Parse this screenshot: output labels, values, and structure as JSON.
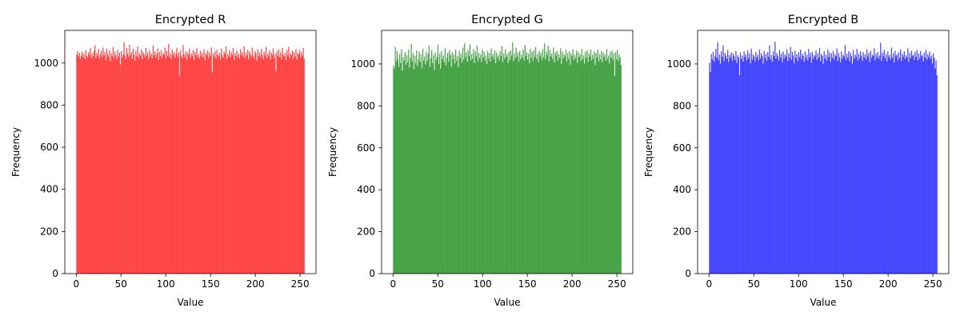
{
  "chart_data": [
    {
      "type": "bar",
      "title": "Encrypted R",
      "xlabel": "Value",
      "ylabel": "Frequency",
      "xlim": [
        -12.75,
        267.75
      ],
      "ylim": [
        0,
        1155
      ],
      "xticks": [
        0,
        50,
        100,
        150,
        200,
        250
      ],
      "yticks": [
        0,
        200,
        400,
        600,
        800,
        1000
      ],
      "bins": 256,
      "bin_range": [
        0,
        255
      ],
      "color": "#ff0000",
      "alpha": 0.7,
      "grid": false,
      "values": [
        1040,
        1057,
        1032,
        1048,
        1021,
        1036,
        1054,
        1029,
        1045,
        1018,
        1061,
        1034,
        1026,
        1052,
        1039,
        1071,
        1023,
        1046,
        1031,
        1057,
        1084,
        1022,
        1049,
        1035,
        1067,
        1019,
        1041,
        1058,
        1027,
        1073,
        1036,
        1052,
        1014,
        1069,
        1043,
        1028,
        1061,
        1009,
        1047,
        1033,
        1076,
        1025,
        1055,
        1038,
        1019,
        1063,
        1031,
        1049,
        993,
        1057,
        1026,
        1042,
        1098,
        1034,
        1018,
        1071,
        1045,
        1029,
        1086,
        1037,
        1052,
        1021,
        1068,
        1040,
        1013,
        1059,
        1032,
        1078,
        1024,
        1047,
        1036,
        1064,
        1019,
        1053,
        1041,
        1028,
        1072,
        1035,
        1049,
        1017,
        1061,
        1030,
        1045,
        1022,
        1083,
        1038,
        1056,
        1027,
        1044,
        1070,
        1015,
        1052,
        1033,
        1061,
        1025,
        1047,
        1039,
        1074,
        1021,
        1058,
        1034,
        1091,
        1028,
        1046,
        1019,
        1065,
        1038,
        1053,
        1026,
        1044,
        1072,
        1031,
        1049,
        941,
        1060,
        1035,
        1023,
        1086,
        1041,
        1029,
        1057,
        1018,
        1050,
        1039,
        1067,
        1024,
        1045,
        1032,
        1061,
        1014,
        1053,
        1037,
        1071,
        1026,
        1043,
        1020,
        1058,
        1034,
        1049,
        1027,
        1066,
        1012,
        1047,
        1038,
        1060,
        1023,
        1051,
        1035,
        1074,
        956,
        1046,
        1029,
        1057,
        1021,
        1063,
        1040,
        1032,
        1048,
        1017,
        1069,
        1036,
        1025,
        1054,
        1043,
        1079,
        1019,
        1045,
        1031,
        1062,
        1028,
        1050,
        1038,
        1071,
        1015,
        1047,
        1033,
        1059,
        1026,
        1044,
        1020,
        1066,
        1039,
        1052,
        1030,
        1081,
        1024,
        1048,
        1036,
        1063,
        1018,
        1055,
        1042,
        1029,
        1073,
        1035,
        1021,
        1058,
        1046,
        1011,
        1064,
        1033,
        1050,
        1027,
        1068,
        1040,
        1019,
        1054,
        1037,
        1076,
        1025,
        1047,
        1032,
        1061,
        1016,
        1049,
        1038,
        1070,
        1023,
        1044,
        962,
        1057,
        1034,
        1065,
        1028,
        1051,
        1019,
        1072,
        1040,
        1031,
        1048,
        1015,
        1062,
        1036,
        1077,
        1024,
        1045,
        1038,
        1059,
        1021,
        1053,
        1030,
        1066,
        1017,
        1047,
        1042,
        1060,
        1026,
        1051,
        1035,
        1071,
        1020
      ]
    },
    {
      "type": "bar",
      "title": "Encrypted G",
      "xlabel": "Value",
      "ylabel": "Frequency",
      "xlim": [
        -12.75,
        267.75
      ],
      "ylim": [
        0,
        1160
      ],
      "xticks": [
        0,
        50,
        100,
        150,
        200,
        250
      ],
      "yticks": [
        0,
        200,
        400,
        600,
        800,
        1000
      ],
      "bins": 256,
      "bin_range": [
        0,
        255
      ],
      "color": "#008000",
      "alpha": 0.7,
      "grid": false,
      "values": [
        992,
        978,
        1081,
        1013,
        1062,
        1024,
        987,
        1047,
        1005,
        1071,
        968,
        1033,
        1016,
        1056,
        996,
        1042,
        1007,
        1068,
        983,
        1029,
        1096,
        1012,
        1051,
        975,
        1038,
        1003,
        1064,
        990,
        1021,
        1058,
        1009,
        1045,
        981,
        1073,
        1017,
        1036,
        998,
        1060,
        1014,
        1048,
        1089,
        986,
        1027,
        1066,
        1004,
        1043,
        971,
        1055,
        1019,
        1034,
        1092,
        1001,
        1049,
        979,
        1061,
        1023,
        1040,
        1008,
        1075,
        993,
        1030,
        1053,
        1011,
        1067,
        1042,
        988,
        1057,
        1024,
        1046,
        1002,
        1069,
        1015,
        1037,
        984,
        1062,
        1028,
        1050,
        1006,
        1078,
        1020,
        1099,
        1033,
        1056,
        1010,
        1065,
        1039,
        1094,
        1018,
        1047,
        1025,
        1071,
        1004,
        1059,
        1036,
        1088,
        1012,
        1053,
        1027,
        1045,
        1009,
        1068,
        1031,
        1057,
        1017,
        1040,
        999,
        1063,
        1026,
        1051,
        1011,
        1074,
        1035,
        1048,
        1022,
        1066,
        1003,
        1055,
        1029,
        1043,
        1015,
        1061,
        1037,
        1086,
        1008,
        1052,
        1024,
        1070,
        1033,
        1046,
        1005,
        1058,
        1019,
        1064,
        1040,
        1102,
        1013,
        1049,
        1027,
        1077,
        1035,
        1054,
        1010,
        1062,
        1023,
        1045,
        1031,
        1069,
        1016,
        1091,
        1038,
        1056,
        1020,
        1048,
        1003,
        1072,
        1029,
        1059,
        1014,
        1066,
        1034,
        1080,
        1025,
        1047,
        1009,
        1063,
        1039,
        1053,
        1018,
        1071,
        1032,
        1098,
        1021,
        1058,
        1043,
        1087,
        1012,
        1067,
        1036,
        1050,
        1024,
        1079,
        1007,
        1055,
        1040,
        1062,
        1016,
        1047,
        1030,
        1074,
        1001,
        1059,
        1026,
        1045,
        1035,
        1068,
        1011,
        1052,
        1022,
        1061,
        997,
        1049,
        1037,
        1070,
        1018,
        1043,
        1027,
        1064,
        1005,
        1056,
        1033,
        1047,
        1014,
        1072,
        1023,
        1041,
        1002,
        1058,
        1030,
        1066,
        1009,
        1050,
        1035,
        1069,
        1017,
        1044,
        1026,
        1060,
        996,
        1053,
        1031,
        1068,
        1012,
        1047,
        1021,
        1062,
        1008,
        1055,
        1034,
        1046,
        1015,
        1071,
        1025,
        1040,
        1003,
        1058,
        1029,
        1064,
        1018,
        1051,
        944,
        1056,
        1022,
        1067,
        1013,
        1043,
        1031,
        996
      ]
    },
    {
      "type": "bar",
      "title": "Encrypted B",
      "xlabel": "Value",
      "ylabel": "Frequency",
      "xlim": [
        -12.75,
        267.75
      ],
      "ylim": [
        0,
        1160
      ],
      "xticks": [
        0,
        50,
        100,
        150,
        200,
        250
      ],
      "yticks": [
        0,
        200,
        400,
        600,
        800,
        1000
      ],
      "bins": 256,
      "bin_range": [
        0,
        255
      ],
      "color": "#0000ff",
      "alpha": 0.7,
      "grid": false,
      "values": [
        1005,
        962,
        1047,
        1021,
        1058,
        1012,
        1036,
        1071,
        1029,
        1103,
        1018,
        1046,
        1002,
        1061,
        1034,
        1088,
        1013,
        1052,
        1040,
        1025,
        1067,
        1009,
        1043,
        1030,
        1056,
        1015,
        1049,
        1037,
        1019,
        1062,
        1006,
        1041,
        1031,
        947,
        1054,
        1024,
        1039,
        1011,
        1059,
        1033,
        1046,
        1017,
        1064,
        1028,
        1050,
        1003,
        1073,
        1020,
        1045,
        1036,
        1012,
        1058,
        1031,
        1044,
        1018,
        1069,
        1026,
        1051,
        1038,
        1002,
        1063,
        1029,
        1047,
        1015,
        1056,
        1034,
        1089,
        1021,
        1043,
        1010,
        1061,
        1037,
        1106,
        1024,
        1052,
        1039,
        1017,
        1066,
        1031,
        1048,
        1008,
        1059,
        1026,
        1045,
        1035,
        1070,
        1014,
        1050,
        1029,
        1081,
        1019,
        1057,
        1040,
        1003,
        1063,
        1028,
        1046,
        1013,
        1055,
        1033,
        1068,
        1021,
        1049,
        1038,
        1011,
        1060,
        1027,
        1044,
        1016,
        1072,
        1032,
        1053,
        1005,
        1058,
        1024,
        1042,
        1036,
        1065,
        1019,
        1051,
        1030,
        1077,
        1013,
        1047,
        1039,
        1002,
        1061,
        1025,
        1044,
        1017,
        1068,
        1034,
        1055,
        1010,
        1050,
        1029,
        1063,
        1021,
        1046,
        1037,
        1074,
        1015,
        1052,
        1031,
        1008,
        1059,
        1026,
        1043,
        1035,
        1090,
        1019,
        1048,
        1030,
        1061,
        1012,
        1054,
        1038,
        1001,
        1066,
        1023,
        1045,
        1033,
        1072,
        1016,
        1050,
        1027,
        1060,
        1040,
        1014,
        1057,
        1031,
        1046,
        1021,
        1069,
        1035,
        1052,
        1009,
        1063,
        1028,
        1044,
        1038,
        1075,
        1018,
        1049,
        1032,
        1058,
        1024,
        1041,
        1101,
        1015,
        1055,
        1036,
        1067,
        1027,
        1047,
        1012,
        1060,
        1033,
        1043,
        1021,
        1079,
        1030,
        1051,
        1007,
        1063,
        1037,
        1046,
        1017,
        1056,
        1029,
        1070,
        1013,
        1048,
        1035,
        1061,
        1023,
        1042,
        1031,
        1074,
        1010,
        1052,
        1028,
        1063,
        1039,
        1045,
        1019,
        1058,
        1034,
        1067,
        1016,
        1049,
        1026,
        1062,
        1037,
        1043,
        1012,
        1055,
        1030,
        1068,
        1021,
        1047,
        1033,
        1059,
        1024,
        1040,
        1002,
        1051,
        1029,
        978,
        1017,
        946
      ]
    }
  ]
}
